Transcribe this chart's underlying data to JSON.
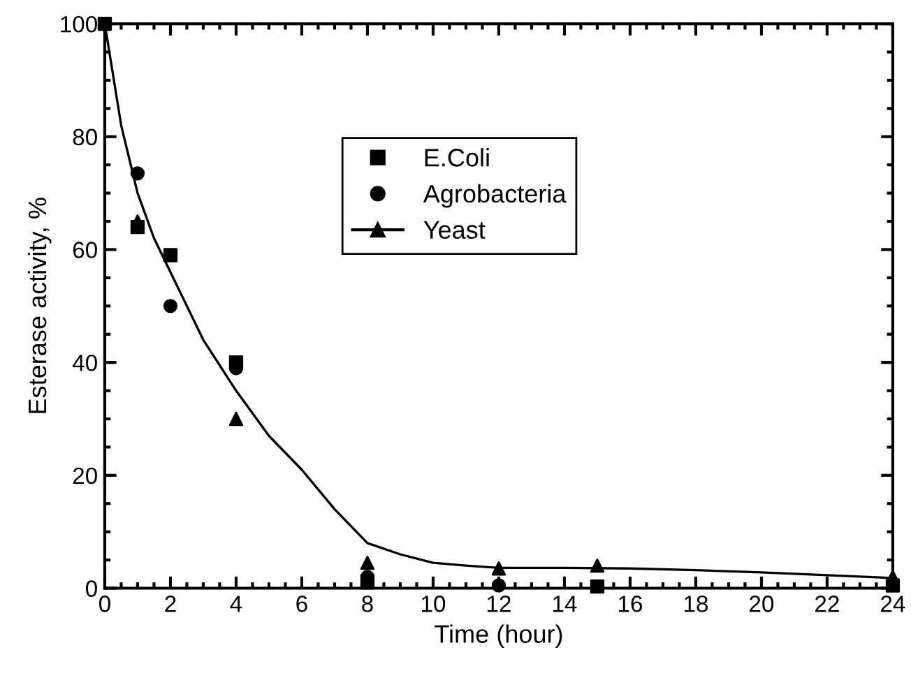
{
  "chart_data": {
    "type": "scatter",
    "xlabel": "Time (hour)",
    "ylabel": "Esterase activity, %",
    "xlim": [
      0,
      24
    ],
    "ylim": [
      0,
      100
    ],
    "xticks": [
      0,
      2,
      4,
      6,
      8,
      10,
      12,
      14,
      16,
      18,
      20,
      22,
      24
    ],
    "yticks": [
      0,
      20,
      40,
      60,
      80,
      100
    ],
    "grid": false,
    "legend": "top center",
    "series": [
      {
        "name": "E.Coli",
        "color": "#000000",
        "marker": "square",
        "x": [
          0,
          1,
          2,
          4,
          8,
          15,
          24
        ],
        "values": [
          100,
          64,
          59,
          40,
          1,
          0.3,
          0.5
        ]
      },
      {
        "name": "Agrobacteria",
        "color": "#000000",
        "marker": "circle",
        "x": [
          1,
          2,
          4,
          8,
          12
        ],
        "values": [
          73.5,
          50,
          39,
          2,
          0.5
        ]
      },
      {
        "name": "Yeast",
        "color": "#000000",
        "marker": "triangle",
        "x": [
          1,
          4,
          8,
          12,
          15,
          24
        ],
        "values": [
          65,
          30,
          4.5,
          3.5,
          4,
          2
        ]
      },
      {
        "type": "line",
        "color": "#000000",
        "marker": "none",
        "line_style": "solid",
        "x": [
          0,
          0.5,
          1,
          1.5,
          2,
          3,
          4,
          5,
          6,
          7,
          8,
          9,
          10,
          11,
          12,
          14,
          16,
          18,
          20,
          22,
          24
        ],
        "values": [
          100,
          82,
          70,
          62,
          56,
          44,
          35,
          27,
          21,
          14,
          8,
          6,
          4.5,
          4,
          3.6,
          3.6,
          3.5,
          3.2,
          2.8,
          2.3,
          1.8
        ]
      }
    ]
  }
}
